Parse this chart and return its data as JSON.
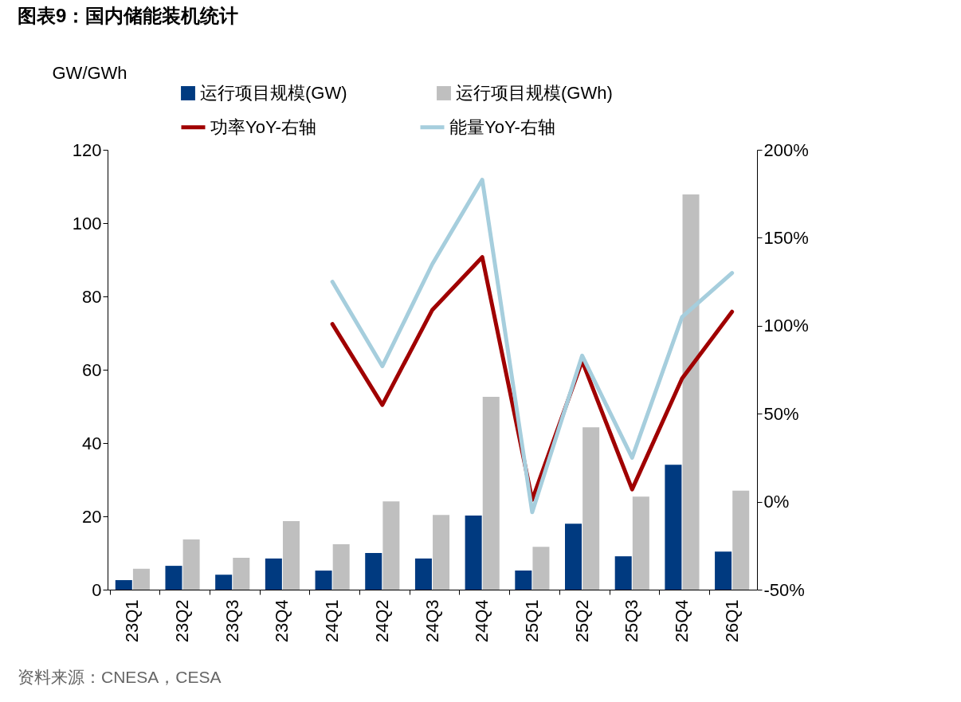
{
  "chart_data": {
    "type": "bar",
    "title": "图表9：国内储能装机统计",
    "ylabel": "GW/GWh",
    "categories": [
      "23Q1",
      "23Q2",
      "23Q3",
      "23Q4",
      "24Q1",
      "24Q2",
      "24Q3",
      "24Q4",
      "25Q1",
      "25Q2",
      "25Q3",
      "25Q4",
      "26Q1"
    ],
    "series": [
      {
        "name": "运行项目规模(GW)",
        "color": "#003a80",
        "values": [
          2.6,
          6.5,
          4.1,
          8.5,
          5.2,
          10,
          8.5,
          20.2,
          5.2,
          18,
          9.1,
          34.1,
          10.4
        ]
      },
      {
        "name": "运行项目规模(GWh)",
        "color": "#bfbfbf",
        "values": [
          5.7,
          13.7,
          8.7,
          18.7,
          12.4,
          24.1,
          20.4,
          52.6,
          11.7,
          44.3,
          25.4,
          107.8,
          27
        ]
      },
      {
        "name": "功率YoY-右轴",
        "type": "line",
        "axis": "y2",
        "color": "#a00000",
        "values": [
          null,
          null,
          null,
          null,
          101,
          55,
          109,
          139,
          1,
          80,
          7,
          70,
          108
        ]
      },
      {
        "name": "能量YoY-右轴",
        "type": "line",
        "axis": "y2",
        "color": "#a6cedd",
        "values": [
          null,
          null,
          null,
          null,
          125,
          77,
          135,
          183,
          -6,
          83,
          25,
          105,
          130
        ]
      }
    ],
    "ylim": [
      0,
      120
    ],
    "yticks": [
      0,
      20,
      40,
      60,
      80,
      100,
      120
    ],
    "y2lim": [
      -50,
      200
    ],
    "y2ticks": [
      {
        "value": -50,
        "label": "-50%"
      },
      {
        "value": 0,
        "label": "0%"
      },
      {
        "value": 50,
        "label": "50%"
      },
      {
        "value": 100,
        "label": "100%"
      },
      {
        "value": 150,
        "label": "150%"
      },
      {
        "value": 200,
        "label": "200%"
      }
    ],
    "grid": false,
    "legend": "top",
    "annotations": [
      "资料来源：CNESA，CESA"
    ]
  }
}
